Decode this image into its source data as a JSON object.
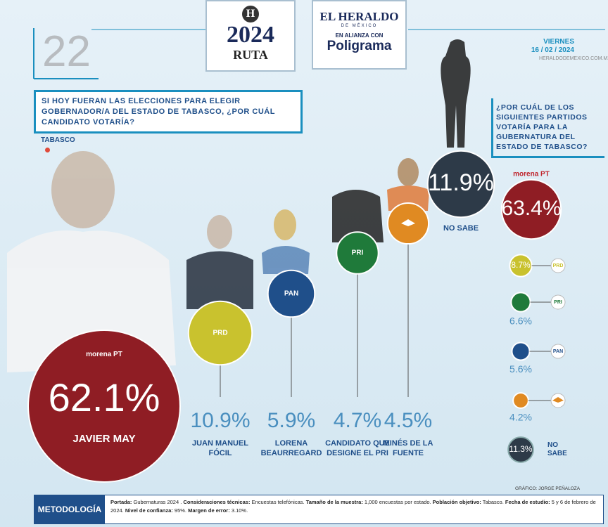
{
  "header": {
    "issue": "22",
    "logo_h": "H",
    "logo_year": "2024",
    "logo_ruta": "RUTA",
    "brand": "EL HERALDO",
    "brand_sub": "DE MÉXICO",
    "alliance": "EN ALIANZA CON",
    "partner": "Poligrama",
    "day": "VIERNES",
    "date": "16 / 02 / 2024",
    "site": "HERALDODEMEXICO.COM.MX"
  },
  "chart_data": [
    {
      "type": "bubble",
      "title": "SI HOY FUERAN LAS ELECCIONES PARA ELEGIR GOBERNADOR/A DEL ESTADO DE TABASCO, ¿POR CUÁL CANDIDATO VOTARÍA?",
      "subtitle": "TABASCO",
      "categories": [
        "JAVIER MAY",
        "JUAN MANUEL FÓCIL",
        "LORENA BEAURREGARD",
        "CANDIDATO QUE DESIGNE EL PRI",
        "MINÉS DE LA FUENTE",
        "NO SABE"
      ],
      "logos": [
        "morena PT",
        "PRD",
        "PAN",
        "PRI",
        null,
        null
      ],
      "values": [
        62.1,
        10.9,
        5.9,
        4.7,
        4.5,
        11.9
      ],
      "value_labels": [
        "62.1%",
        "10.9%",
        "5.9%",
        "4.7%",
        "4.5%",
        "11.9%"
      ],
      "colors": [
        "#8f1d24",
        "#c9c22e",
        "#1f4f8a",
        "#1f7a3a",
        "#e08a22",
        "#2d3a48"
      ]
    },
    {
      "type": "bubble",
      "title": "¿POR CUÁL DE LOS SIGUIENTES PARTIDOS VOTARÍA PARA LA GUBERNATURA DEL ESTADO DE TABASCO?",
      "categories": [
        "morena PT",
        "PRD",
        "PRI",
        "PAN",
        null,
        "NO SABE"
      ],
      "values": [
        63.4,
        8.7,
        6.6,
        5.6,
        4.2,
        11.3
      ],
      "value_labels": [
        "63.4%",
        "8.7%",
        "6.6%",
        "5.6%",
        "4.2%",
        "11.3%"
      ],
      "colors": [
        "#8f1d24",
        "#c9c22e",
        "#1f7a3a",
        "#1f4f8a",
        "#e08a22",
        "#2d3a48"
      ]
    }
  ],
  "credit": "GRÁFICO: JORGE PEÑALOZA",
  "methodology": {
    "label": "METODOLOGÍA",
    "items": [
      {
        "label": "Portada:",
        "text": "Gubernaturas 2024 ."
      },
      {
        "label": "Consideraciones técnicas:",
        "text": "Encuestas telefónicas."
      },
      {
        "label": "Tamaño de la muestra:",
        "text": "1,000 encuestas por estado."
      },
      {
        "label": "Población objetivo:",
        "text": "Tabasco."
      },
      {
        "label": "Fecha de estudio:",
        "text": "5 y 6 de febrero de 2024."
      },
      {
        "label": "Nivel de confianza:",
        "text": "95%."
      },
      {
        "label": "Margen de error:",
        "text": "3.10%."
      }
    ]
  }
}
